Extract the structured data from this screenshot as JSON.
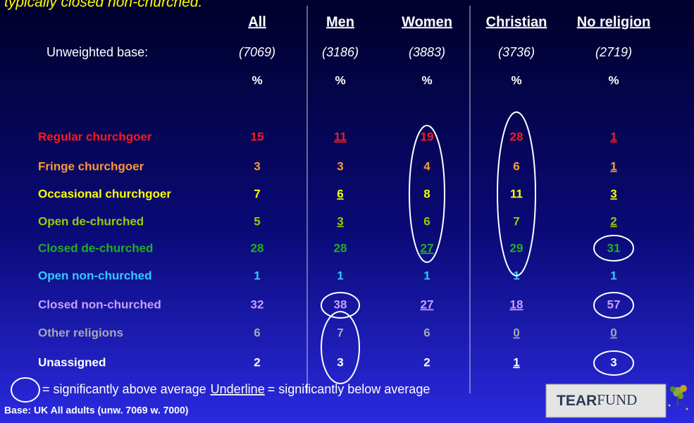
{
  "header": {
    "title": "typically closed non-churched."
  },
  "table": {
    "columns": [
      "All",
      "Men",
      "Women",
      "Christian",
      "No religion"
    ],
    "base_label": "Unweighted base:",
    "base": [
      "(7069)",
      "(3186)",
      "(3883)",
      "(3736)",
      "(2719)"
    ],
    "units": [
      "%",
      "%",
      "%",
      "%",
      "%"
    ],
    "rows": [
      {
        "label": "Regular churchgoer",
        "values": [
          15,
          11,
          19,
          28,
          1
        ]
      },
      {
        "label": "Fringe churchgoer",
        "values": [
          3,
          3,
          4,
          6,
          1
        ]
      },
      {
        "label": "Occasional churchgoer",
        "values": [
          7,
          6,
          8,
          11,
          3
        ]
      },
      {
        "label": "Open de-churched",
        "values": [
          5,
          3,
          6,
          7,
          2
        ]
      },
      {
        "label": "Closed de-churched",
        "values": [
          28,
          28,
          27,
          29,
          31
        ]
      },
      {
        "label": "Open non-churched",
        "values": [
          1,
          1,
          1,
          1,
          1
        ]
      },
      {
        "label": "Closed non-churched",
        "values": [
          32,
          38,
          27,
          18,
          57
        ]
      },
      {
        "label": "Other religions",
        "values": [
          6,
          7,
          6,
          0,
          0
        ]
      },
      {
        "label": "Unassigned",
        "values": [
          2,
          3,
          2,
          1,
          3
        ]
      }
    ]
  },
  "footer": {
    "legend_above": "= significantly above average",
    "legend_underline": "Underline",
    "legend_below": "= significantly below average",
    "base_note": "Base: UK All adults (unw. 7069 w. 7000)"
  },
  "logo": {
    "part1": "TEAR",
    "part2": "FUND"
  }
}
